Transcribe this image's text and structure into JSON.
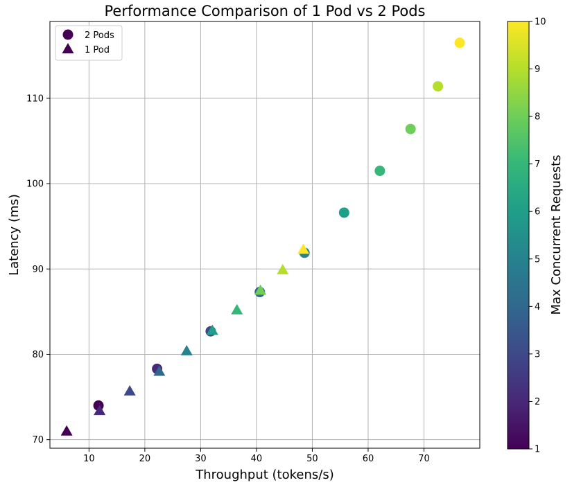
{
  "chart_data": {
    "type": "scatter",
    "title": "Performance Comparison of 1 Pod vs 2 Pods",
    "xlabel": "Throughput (tokens/s)",
    "ylabel": "Latency (ms)",
    "xlim": [
      3,
      80
    ],
    "ylim": [
      69,
      119
    ],
    "x_ticks": [
      10,
      20,
      30,
      40,
      50,
      60,
      70
    ],
    "y_ticks": [
      70,
      80,
      90,
      100,
      110
    ],
    "grid": true,
    "legend_position": "top-left",
    "colorbar": {
      "label": "Max Concurrent Requests",
      "min": 1,
      "max": 10,
      "ticks": [
        1,
        2,
        3,
        4,
        5,
        6,
        7,
        8,
        9,
        10
      ],
      "colormap": "viridis"
    },
    "series": [
      {
        "name": "2 Pods",
        "marker": "circle",
        "points": [
          {
            "x": 11.7,
            "y": 74.0,
            "c": 1
          },
          {
            "x": 22.2,
            "y": 78.3,
            "c": 2
          },
          {
            "x": 31.8,
            "y": 82.7,
            "c": 3
          },
          {
            "x": 40.6,
            "y": 87.3,
            "c": 4
          },
          {
            "x": 48.6,
            "y": 91.9,
            "c": 5
          },
          {
            "x": 55.7,
            "y": 96.6,
            "c": 6
          },
          {
            "x": 62.1,
            "y": 101.5,
            "c": 7
          },
          {
            "x": 67.6,
            "y": 106.4,
            "c": 8
          },
          {
            "x": 72.5,
            "y": 111.4,
            "c": 9
          },
          {
            "x": 76.4,
            "y": 116.5,
            "c": 10
          }
        ]
      },
      {
        "name": "1 Pod",
        "marker": "triangle",
        "points": [
          {
            "x": 6.0,
            "y": 71.0,
            "c": 1
          },
          {
            "x": 11.9,
            "y": 73.4,
            "c": 2
          },
          {
            "x": 17.3,
            "y": 75.7,
            "c": 3
          },
          {
            "x": 22.6,
            "y": 78.0,
            "c": 4
          },
          {
            "x": 27.5,
            "y": 80.4,
            "c": 5
          },
          {
            "x": 32.1,
            "y": 82.8,
            "c": 6
          },
          {
            "x": 36.5,
            "y": 85.2,
            "c": 7
          },
          {
            "x": 40.7,
            "y": 87.5,
            "c": 8
          },
          {
            "x": 44.7,
            "y": 89.9,
            "c": 9
          },
          {
            "x": 48.4,
            "y": 92.3,
            "c": 10
          }
        ]
      }
    ]
  }
}
